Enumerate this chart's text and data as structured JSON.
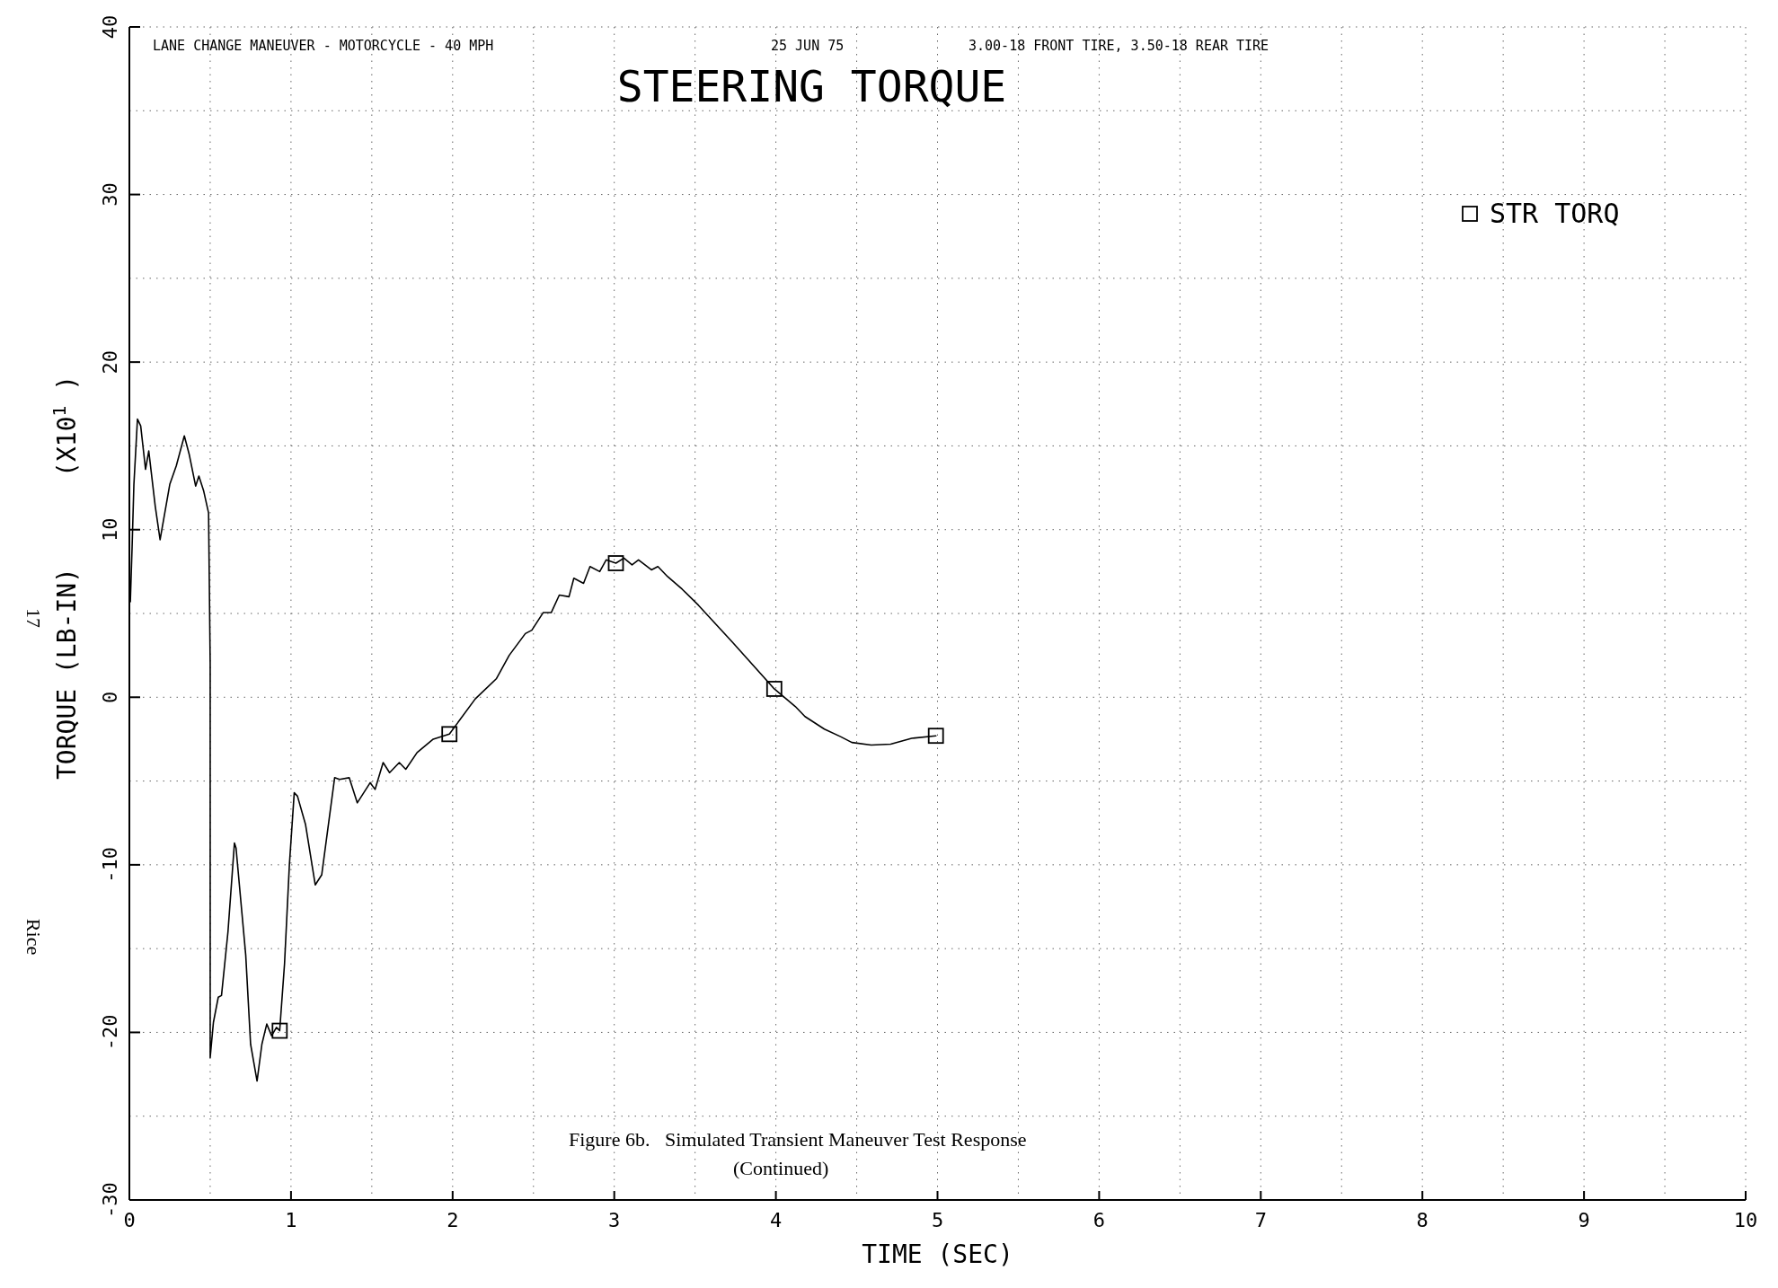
{
  "chart_data": {
    "type": "line",
    "title": "STEERING TORQUE",
    "xlabel": "TIME (SEC)",
    "ylabel": "TORQUE (LB-IN)      (X10$^{1}$ )",
    "annotations": [
      "LANE CHANGE MANEUVER - MOTORCYCLE - 40 MPH",
      "25 JUN 75",
      "3.00-18 FRONT TIRE, 3.50-18 REAR TIRE",
      "Figure 6b.   Simulated Transient Maneuver Test Response",
      "(Continued)",
      "17",
      "Rice"
    ],
    "xlim": [
      0,
      10
    ],
    "ylim": [
      -30,
      40
    ],
    "xticks": [
      0,
      {
        "value": 0.5,
        "label": null
      },
      1,
      {
        "value": 1.5,
        "label": null
      },
      2,
      {
        "value": 2.5,
        "label": null
      },
      3,
      {
        "value": 3.5,
        "label": null
      },
      4,
      {
        "value": 4.5,
        "label": null
      },
      5,
      {
        "value": 5.5,
        "label": null
      },
      6,
      {
        "value": 6.5,
        "label": null
      },
      7,
      {
        "value": 7.5,
        "label": null
      },
      8,
      {
        "value": 8.5,
        "label": null
      },
      9,
      {
        "value": 9.5,
        "label": null
      },
      10
    ],
    "yticks": [
      -30,
      {
        "value": -25,
        "label": null
      },
      -20,
      {
        "value": -15,
        "label": null
      },
      -10,
      {
        "value": -5,
        "label": null
      },
      0,
      {
        "value": 5,
        "label": null
      },
      10,
      {
        "value": 15,
        "label": null
      },
      20,
      {
        "value": 25,
        "label": null
      },
      30,
      {
        "value": 35,
        "label": null
      },
      40
    ],
    "grid": true,
    "legend": "top right",
    "line_style": "solid",
    "series": [
      {
        "name": "STR TORQ",
        "color": "#000000",
        "x": [
          0.006,
          0.017,
          0.028,
          0.05,
          0.07,
          0.1,
          0.12,
          0.16,
          0.19,
          0.25,
          0.29,
          0.34,
          0.37,
          0.41,
          0.43,
          0.46,
          0.49,
          0.5,
          0.5,
          0.52,
          0.55,
          0.57,
          0.61,
          0.65,
          0.66,
          0.72,
          0.75,
          0.79,
          0.82,
          0.85,
          0.88,
          0.91,
          0.93,
          0.96,
          0.99,
          1.02,
          1.04,
          1.09,
          1.15,
          1.19,
          1.27,
          1.3,
          1.36,
          1.41,
          1.49,
          1.52,
          1.57,
          1.61,
          1.67,
          1.71,
          1.78,
          1.88,
          1.98,
          2.14,
          2.27,
          2.35,
          2.45,
          2.49,
          2.56,
          2.61,
          2.66,
          2.72,
          2.75,
          2.81,
          2.85,
          2.91,
          2.95,
          3.01,
          3.06,
          3.11,
          3.15,
          3.23,
          3.27,
          3.33,
          3.42,
          3.52,
          3.73,
          3.99,
          4.12,
          4.18,
          4.3,
          4.4,
          4.47,
          4.59,
          4.71,
          4.84,
          4.99
        ],
        "values": [
          5.7,
          9,
          12.7,
          16.6,
          16.2,
          13.6,
          14.7,
          11.4,
          9.4,
          12.7,
          13.8,
          15.6,
          14.5,
          12.6,
          13.2,
          12.3,
          11,
          2,
          -21.5,
          -19.4,
          -17.9,
          -17.8,
          -14,
          -8.7,
          -9,
          -15.4,
          -20.7,
          -22.9,
          -20.7,
          -19.5,
          -20.2,
          -19.7,
          -19.9,
          -15.9,
          -10,
          -5.7,
          -5.9,
          -7.6,
          -11.2,
          -10.6,
          -4.8,
          -4.9,
          -4.8,
          -6.3,
          -5.1,
          -5.5,
          -3.9,
          -4.5,
          -3.9,
          -4.3,
          -3.3,
          -2.5,
          -2.2,
          -0.1,
          1.1,
          2.5,
          3.8,
          4,
          5.05,
          5.05,
          6.1,
          6,
          7.1,
          6.8,
          7.8,
          7.5,
          8.2,
          8,
          8.3,
          7.9,
          8.2,
          7.6,
          7.8,
          7.2,
          6.45,
          5.5,
          3.3,
          0.5,
          -0.55,
          -1.15,
          -1.9,
          -2.35,
          -2.7,
          -2.85,
          -2.8,
          -2.45,
          -2.3
        ]
      },
      {
        "type": "scatter",
        "marker": "square",
        "color": "#000000",
        "x": [
          0.93,
          1.98,
          3.01,
          3.99,
          4.99
        ],
        "values": [
          -19.9,
          -2.2,
          8,
          0.5,
          -2.3
        ]
      }
    ]
  }
}
